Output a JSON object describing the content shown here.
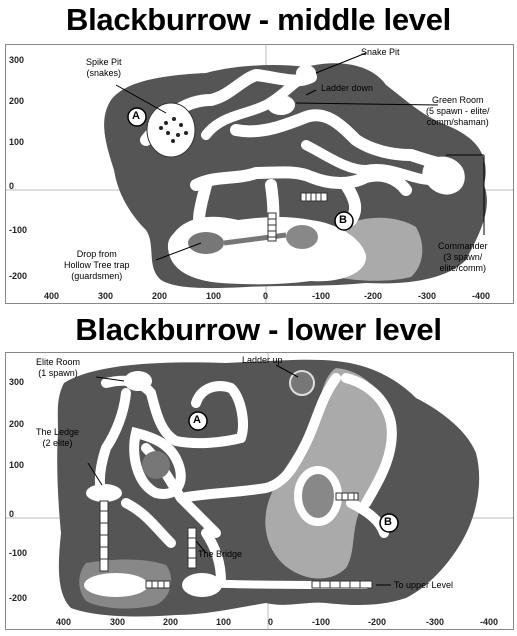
{
  "maps": {
    "middle": {
      "title": "Blackburrow - middle level",
      "y_ticks": [
        "300",
        "200",
        "100",
        "0",
        "-100",
        "-200"
      ],
      "x_ticks": [
        "400",
        "300",
        "200",
        "100",
        "0",
        "-100",
        "-200",
        "-300",
        "-400"
      ],
      "labels": {
        "spike_pit": "Spike Pit\n(snakes)",
        "snake_pit": "Snake Pit",
        "ladder_down": "Ladder down",
        "green_room": "Green Room\n(5 spawn - elite/\ncomm/shaman)",
        "drop_trap": "Drop from\nHollow Tree trap\n(guardsmen)",
        "commander": "Commander\n(3 spawn/\nelite/comm)"
      },
      "markers": [
        "A",
        "B"
      ]
    },
    "lower": {
      "title": "Blackburrow - lower level",
      "y_ticks": [
        "300",
        "200",
        "100",
        "0",
        "-100",
        "-200"
      ],
      "x_ticks": [
        "400",
        "300",
        "200",
        "100",
        "0",
        "-100",
        "-200",
        "-300",
        "-400"
      ],
      "labels": {
        "elite_room": "Elite Room\n(1 spawn)",
        "ladder_up": "Ladder up",
        "the_ledge": "The Ledge\n(2 elite)",
        "the_bridge": "The Bridge",
        "to_upper": "To upper Level"
      },
      "markers": [
        "A",
        "B"
      ]
    }
  },
  "colors": {
    "dark_rock": "#555555",
    "light_rock": "#aaaaaa",
    "tunnel": "#ffffff",
    "grid": "#bbbbbb"
  }
}
